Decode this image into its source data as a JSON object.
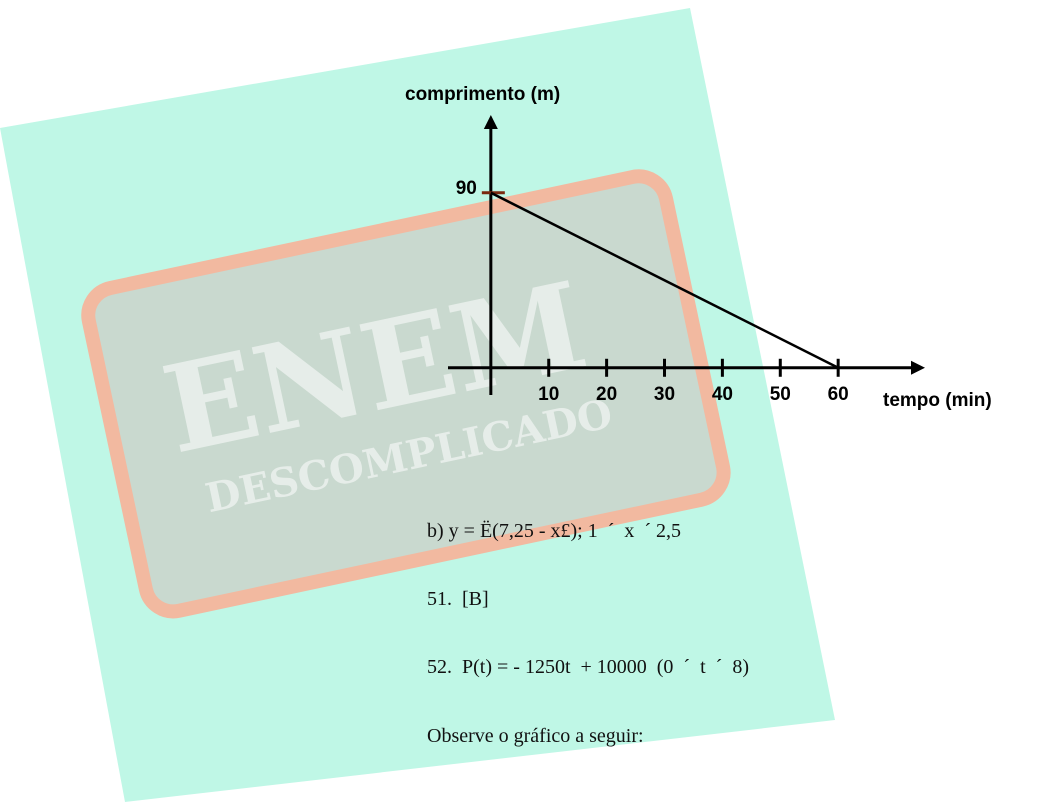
{
  "watermark": {
    "title": "ENEM",
    "subtitle": "DESCOMPLICADO"
  },
  "chart_data": {
    "type": "line",
    "y_label": "comprimento (m)",
    "x_label": "tempo (min)",
    "x": [
      0,
      60
    ],
    "values": [
      90,
      0
    ],
    "color": "#000000",
    "xlim": [
      -7.4,
      75
    ],
    "ylim": [
      -14,
      130
    ],
    "xticks": [
      10,
      20,
      30,
      40,
      50,
      60
    ],
    "yticks": [
      90
    ]
  },
  "document": {
    "lines": [
      "b) y = Ë(7,25 - x£); 1  ´  x  ´ 2,5",
      "51.  [B]",
      "52.  P(t) = - 1250t  + 10000  (0  ´  t  ´  8)",
      "Observe o gráfico a seguir:"
    ]
  }
}
